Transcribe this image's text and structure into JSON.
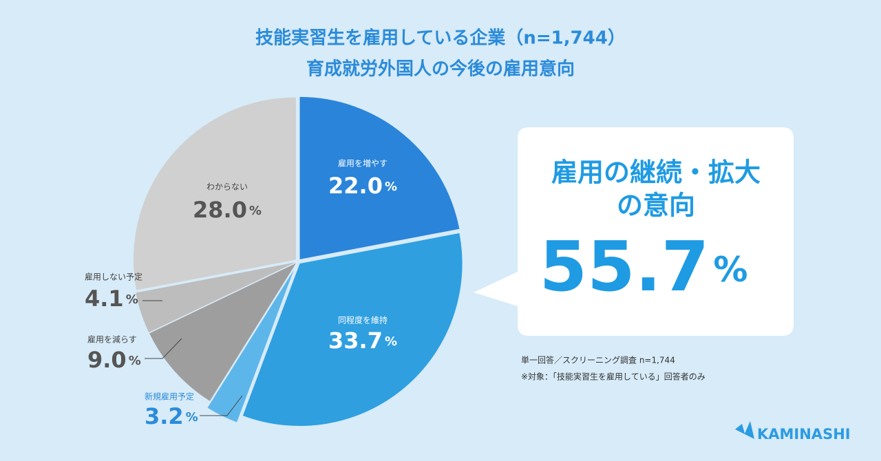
{
  "chart_data": {
    "type": "pie",
    "title": [
      "技能実習生を雇用している企業（n=1,744）",
      "育成就労外国人の今後の雇用意向"
    ],
    "categories": [
      "雇用を増やす",
      "同程度を維持",
      "新規雇用予定",
      "雇用を減らす",
      "雇用しない予定",
      "わからない"
    ],
    "values": [
      22.0,
      33.7,
      3.2,
      9.0,
      4.1,
      28.0
    ],
    "value_labels": [
      "22.0",
      "33.7",
      "3.2",
      "9.0",
      "4.1",
      "28.0"
    ],
    "unit": "%",
    "colors": [
      "#2a84d9",
      "#2f9fe0",
      "#5db6ea",
      "#9e9e9e",
      "#bdbdbd",
      "#d0d0d0"
    ],
    "callout": {
      "lines": [
        "雇用の継続・拡大",
        "の意向"
      ],
      "value": "55.7"
    },
    "notes": [
      "単一回答／スクリーニング調査 n=1,744",
      "※対象：「技能実習生を雇用している」回答者のみ"
    ],
    "logo": "KAMINASHI"
  }
}
